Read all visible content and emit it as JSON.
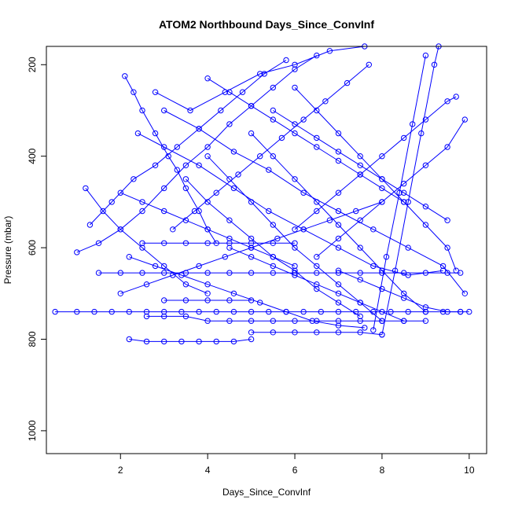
{
  "chart_data": {
    "type": "scatter",
    "title": "ATOM2 Northbound Days_Since_ConvInf",
    "xlabel": "Days_Since_ConvInf",
    "ylabel": "Pressure (mbar)",
    "xlim": [
      0.3,
      10.4
    ],
    "ylim": [
      1050,
      160
    ],
    "y_reversed": true,
    "x_ticks": [
      2,
      4,
      6,
      8,
      10
    ],
    "y_ticks": [
      200,
      400,
      600,
      800,
      1000
    ],
    "marker": "open-circle",
    "line_connected": true,
    "color": "#0000ff",
    "grid": false,
    "series": [
      {
        "values": [
          [
            0.5,
            740
          ],
          [
            1.0,
            740
          ],
          [
            1.4,
            740
          ],
          [
            1.8,
            740
          ],
          [
            2.2,
            740
          ],
          [
            2.6,
            740
          ],
          [
            3.0,
            740
          ],
          [
            3.4,
            740
          ],
          [
            3.8,
            740
          ],
          [
            4.2,
            740
          ],
          [
            4.6,
            740
          ],
          [
            5.0,
            740
          ],
          [
            5.4,
            740
          ],
          [
            5.8,
            740
          ],
          [
            6.2,
            740
          ],
          [
            6.6,
            740
          ],
          [
            7.0,
            740
          ],
          [
            7.4,
            740
          ],
          [
            7.8,
            740
          ],
          [
            8.2,
            740
          ],
          [
            8.6,
            740
          ],
          [
            9.0,
            740
          ],
          [
            9.4,
            740
          ],
          [
            9.8,
            740
          ],
          [
            10.0,
            740
          ]
        ]
      },
      {
        "values": [
          [
            2.1,
            225
          ],
          [
            2.3,
            260
          ],
          [
            2.5,
            300
          ],
          [
            2.8,
            350
          ],
          [
            3.1,
            400
          ],
          [
            3.3,
            430
          ],
          [
            3.5,
            470
          ],
          [
            3.8,
            520
          ],
          [
            4.0,
            560
          ],
          [
            4.2,
            590
          ]
        ]
      },
      {
        "values": [
          [
            2.2,
            800
          ],
          [
            2.6,
            805
          ],
          [
            3.0,
            805
          ],
          [
            3.4,
            805
          ],
          [
            3.8,
            805
          ],
          [
            4.2,
            805
          ],
          [
            4.6,
            805
          ],
          [
            5.0,
            800
          ]
        ]
      },
      {
        "values": [
          [
            1.5,
            655
          ],
          [
            2.0,
            655
          ],
          [
            2.5,
            655
          ],
          [
            3.0,
            655
          ],
          [
            3.5,
            655
          ],
          [
            4.0,
            655
          ],
          [
            4.5,
            655
          ],
          [
            5.0,
            655
          ],
          [
            5.5,
            655
          ],
          [
            6.0,
            655
          ],
          [
            6.5,
            655
          ],
          [
            7.0,
            655
          ],
          [
            7.5,
            655
          ],
          [
            8.0,
            655
          ],
          [
            8.5,
            655
          ],
          [
            9.0,
            655
          ],
          [
            9.5,
            655
          ],
          [
            9.8,
            655
          ]
        ]
      },
      {
        "values": [
          [
            2.5,
            590
          ],
          [
            3.0,
            590
          ],
          [
            3.5,
            590
          ],
          [
            4.0,
            590
          ],
          [
            4.5,
            590
          ],
          [
            5.0,
            590
          ],
          [
            5.5,
            590
          ],
          [
            6.0,
            590
          ]
        ]
      },
      {
        "values": [
          [
            2.6,
            750
          ],
          [
            3.0,
            750
          ],
          [
            3.5,
            750
          ],
          [
            4.0,
            760
          ],
          [
            4.5,
            760
          ],
          [
            5.0,
            760
          ],
          [
            5.5,
            760
          ],
          [
            6.0,
            760
          ],
          [
            6.5,
            760
          ],
          [
            7.0,
            760
          ],
          [
            7.5,
            760
          ],
          [
            8.0,
            760
          ],
          [
            8.5,
            760
          ]
        ]
      },
      {
        "values": [
          [
            5.0,
            785
          ],
          [
            5.5,
            785
          ],
          [
            6.0,
            785
          ],
          [
            6.5,
            785
          ],
          [
            7.0,
            785
          ],
          [
            7.5,
            785
          ],
          [
            8.0,
            790
          ]
        ]
      },
      {
        "values": [
          [
            3.0,
            715
          ],
          [
            3.5,
            715
          ],
          [
            4.0,
            715
          ],
          [
            4.5,
            715
          ],
          [
            5.0,
            715
          ]
        ]
      },
      {
        "values": [
          [
            8.0,
            790
          ],
          [
            8.3,
            650
          ],
          [
            8.6,
            500
          ],
          [
            8.9,
            350
          ],
          [
            9.2,
            200
          ],
          [
            9.3,
            160
          ]
        ]
      },
      {
        "values": [
          [
            7.8,
            780
          ],
          [
            8.1,
            620
          ],
          [
            8.4,
            480
          ],
          [
            8.7,
            330
          ],
          [
            9.0,
            180
          ]
        ]
      },
      {
        "values": [
          [
            1.2,
            470
          ],
          [
            1.6,
            520
          ],
          [
            2.0,
            560
          ],
          [
            2.5,
            600
          ],
          [
            3.0,
            640
          ],
          [
            3.5,
            680
          ],
          [
            4.0,
            700
          ]
        ]
      },
      {
        "values": [
          [
            1.0,
            610
          ],
          [
            1.5,
            590
          ],
          [
            2.0,
            560
          ],
          [
            2.5,
            520
          ],
          [
            3.0,
            470
          ],
          [
            3.5,
            420
          ],
          [
            4.0,
            380
          ],
          [
            4.5,
            330
          ],
          [
            5.0,
            290
          ],
          [
            5.5,
            250
          ],
          [
            6.0,
            210
          ],
          [
            6.5,
            180
          ]
        ]
      },
      {
        "values": [
          [
            2.4,
            350
          ],
          [
            3.0,
            380
          ],
          [
            3.8,
            420
          ],
          [
            4.6,
            470
          ],
          [
            5.4,
            520
          ],
          [
            6.2,
            560
          ],
          [
            7.0,
            600
          ],
          [
            7.8,
            640
          ],
          [
            8.6,
            660
          ],
          [
            9.4,
            650
          ]
        ]
      },
      {
        "values": [
          [
            3.0,
            300
          ],
          [
            3.8,
            340
          ],
          [
            4.6,
            390
          ],
          [
            5.4,
            430
          ],
          [
            6.2,
            480
          ],
          [
            7.0,
            520
          ],
          [
            7.8,
            560
          ],
          [
            8.6,
            600
          ],
          [
            9.4,
            640
          ],
          [
            9.9,
            700
          ]
        ]
      },
      {
        "values": [
          [
            2.8,
            260
          ],
          [
            3.6,
            300
          ],
          [
            4.4,
            260
          ],
          [
            5.2,
            220
          ],
          [
            6.0,
            200
          ],
          [
            6.8,
            170
          ],
          [
            7.6,
            160
          ]
        ]
      },
      {
        "values": [
          [
            4.0,
            400
          ],
          [
            4.5,
            450
          ],
          [
            5.0,
            500
          ],
          [
            5.5,
            550
          ],
          [
            6.0,
            600
          ],
          [
            6.5,
            640
          ],
          [
            7.0,
            680
          ],
          [
            7.5,
            720
          ],
          [
            8.0,
            760
          ]
        ]
      },
      {
        "values": [
          [
            5.0,
            350
          ],
          [
            5.5,
            400
          ],
          [
            6.0,
            450
          ],
          [
            6.5,
            500
          ],
          [
            7.0,
            550
          ],
          [
            7.5,
            600
          ],
          [
            8.0,
            650
          ],
          [
            8.5,
            700
          ],
          [
            9.0,
            740
          ]
        ]
      },
      {
        "values": [
          [
            6.0,
            250
          ],
          [
            6.5,
            300
          ],
          [
            7.0,
            350
          ],
          [
            7.5,
            400
          ],
          [
            8.0,
            450
          ],
          [
            8.5,
            500
          ],
          [
            9.0,
            550
          ],
          [
            9.5,
            600
          ],
          [
            9.7,
            650
          ]
        ]
      },
      {
        "values": [
          [
            3.2,
            560
          ],
          [
            3.7,
            520
          ],
          [
            4.2,
            480
          ],
          [
            4.7,
            440
          ],
          [
            5.2,
            400
          ],
          [
            5.7,
            360
          ],
          [
            6.2,
            320
          ],
          [
            6.7,
            280
          ],
          [
            7.2,
            240
          ],
          [
            7.7,
            200
          ]
        ]
      },
      {
        "values": [
          [
            2.0,
            700
          ],
          [
            2.6,
            680
          ],
          [
            3.2,
            660
          ],
          [
            3.8,
            640
          ],
          [
            4.4,
            620
          ],
          [
            5.0,
            600
          ],
          [
            5.6,
            580
          ],
          [
            6.2,
            560
          ],
          [
            6.8,
            540
          ],
          [
            7.4,
            520
          ],
          [
            8.0,
            500
          ]
        ]
      },
      {
        "values": [
          [
            4.5,
            600
          ],
          [
            5.0,
            620
          ],
          [
            5.5,
            640
          ],
          [
            6.0,
            660
          ],
          [
            6.5,
            680
          ],
          [
            7.0,
            700
          ],
          [
            7.5,
            720
          ],
          [
            8.0,
            740
          ],
          [
            8.5,
            760
          ],
          [
            9.0,
            760
          ]
        ]
      },
      {
        "values": [
          [
            1.3,
            550
          ],
          [
            1.8,
            500
          ],
          [
            2.3,
            450
          ],
          [
            2.8,
            420
          ],
          [
            3.3,
            380
          ],
          [
            3.8,
            340
          ],
          [
            4.3,
            300
          ],
          [
            4.8,
            260
          ],
          [
            5.3,
            220
          ],
          [
            5.8,
            190
          ]
        ]
      },
      {
        "values": [
          [
            6.5,
            620
          ],
          [
            7.0,
            580
          ],
          [
            7.5,
            540
          ],
          [
            8.0,
            500
          ],
          [
            8.5,
            460
          ],
          [
            9.0,
            420
          ],
          [
            9.5,
            380
          ],
          [
            9.9,
            320
          ]
        ]
      },
      {
        "values": [
          [
            2.2,
            620
          ],
          [
            2.8,
            640
          ],
          [
            3.4,
            660
          ],
          [
            4.0,
            680
          ],
          [
            4.6,
            700
          ],
          [
            5.2,
            720
          ],
          [
            5.8,
            740
          ],
          [
            6.4,
            760
          ],
          [
            7.0,
            770
          ],
          [
            7.6,
            775
          ]
        ]
      },
      {
        "values": [
          [
            3.5,
            450
          ],
          [
            4.0,
            500
          ],
          [
            4.5,
            540
          ],
          [
            5.0,
            580
          ],
          [
            5.5,
            620
          ],
          [
            6.0,
            650
          ],
          [
            6.5,
            690
          ],
          [
            7.0,
            720
          ],
          [
            7.5,
            750
          ]
        ]
      },
      {
        "values": [
          [
            5.5,
            300
          ],
          [
            6.0,
            330
          ],
          [
            6.5,
            360
          ],
          [
            7.0,
            390
          ],
          [
            7.5,
            420
          ],
          [
            8.0,
            450
          ],
          [
            8.5,
            480
          ],
          [
            9.0,
            510
          ],
          [
            9.5,
            540
          ]
        ]
      },
      {
        "values": [
          [
            2.0,
            480
          ],
          [
            2.5,
            500
          ],
          [
            3.0,
            520
          ],
          [
            3.5,
            540
          ],
          [
            4.0,
            560
          ],
          [
            4.5,
            580
          ],
          [
            5.0,
            600
          ],
          [
            5.5,
            620
          ],
          [
            6.0,
            640
          ]
        ]
      },
      {
        "values": [
          [
            4.0,
            230
          ],
          [
            4.5,
            260
          ],
          [
            5.0,
            290
          ],
          [
            5.5,
            320
          ],
          [
            6.0,
            350
          ],
          [
            6.5,
            380
          ],
          [
            7.0,
            410
          ],
          [
            7.5,
            440
          ],
          [
            8.0,
            470
          ],
          [
            8.5,
            500
          ]
        ]
      },
      {
        "values": [
          [
            7.0,
            650
          ],
          [
            7.5,
            670
          ],
          [
            8.0,
            690
          ],
          [
            8.5,
            710
          ],
          [
            9.0,
            730
          ],
          [
            9.5,
            740
          ],
          [
            9.8,
            740
          ]
        ]
      },
      {
        "values": [
          [
            6.0,
            560
          ],
          [
            6.5,
            520
          ],
          [
            7.0,
            480
          ],
          [
            7.5,
            440
          ],
          [
            8.0,
            400
          ],
          [
            8.5,
            360
          ],
          [
            9.0,
            320
          ],
          [
            9.5,
            280
          ],
          [
            9.7,
            270
          ]
        ]
      }
    ]
  }
}
